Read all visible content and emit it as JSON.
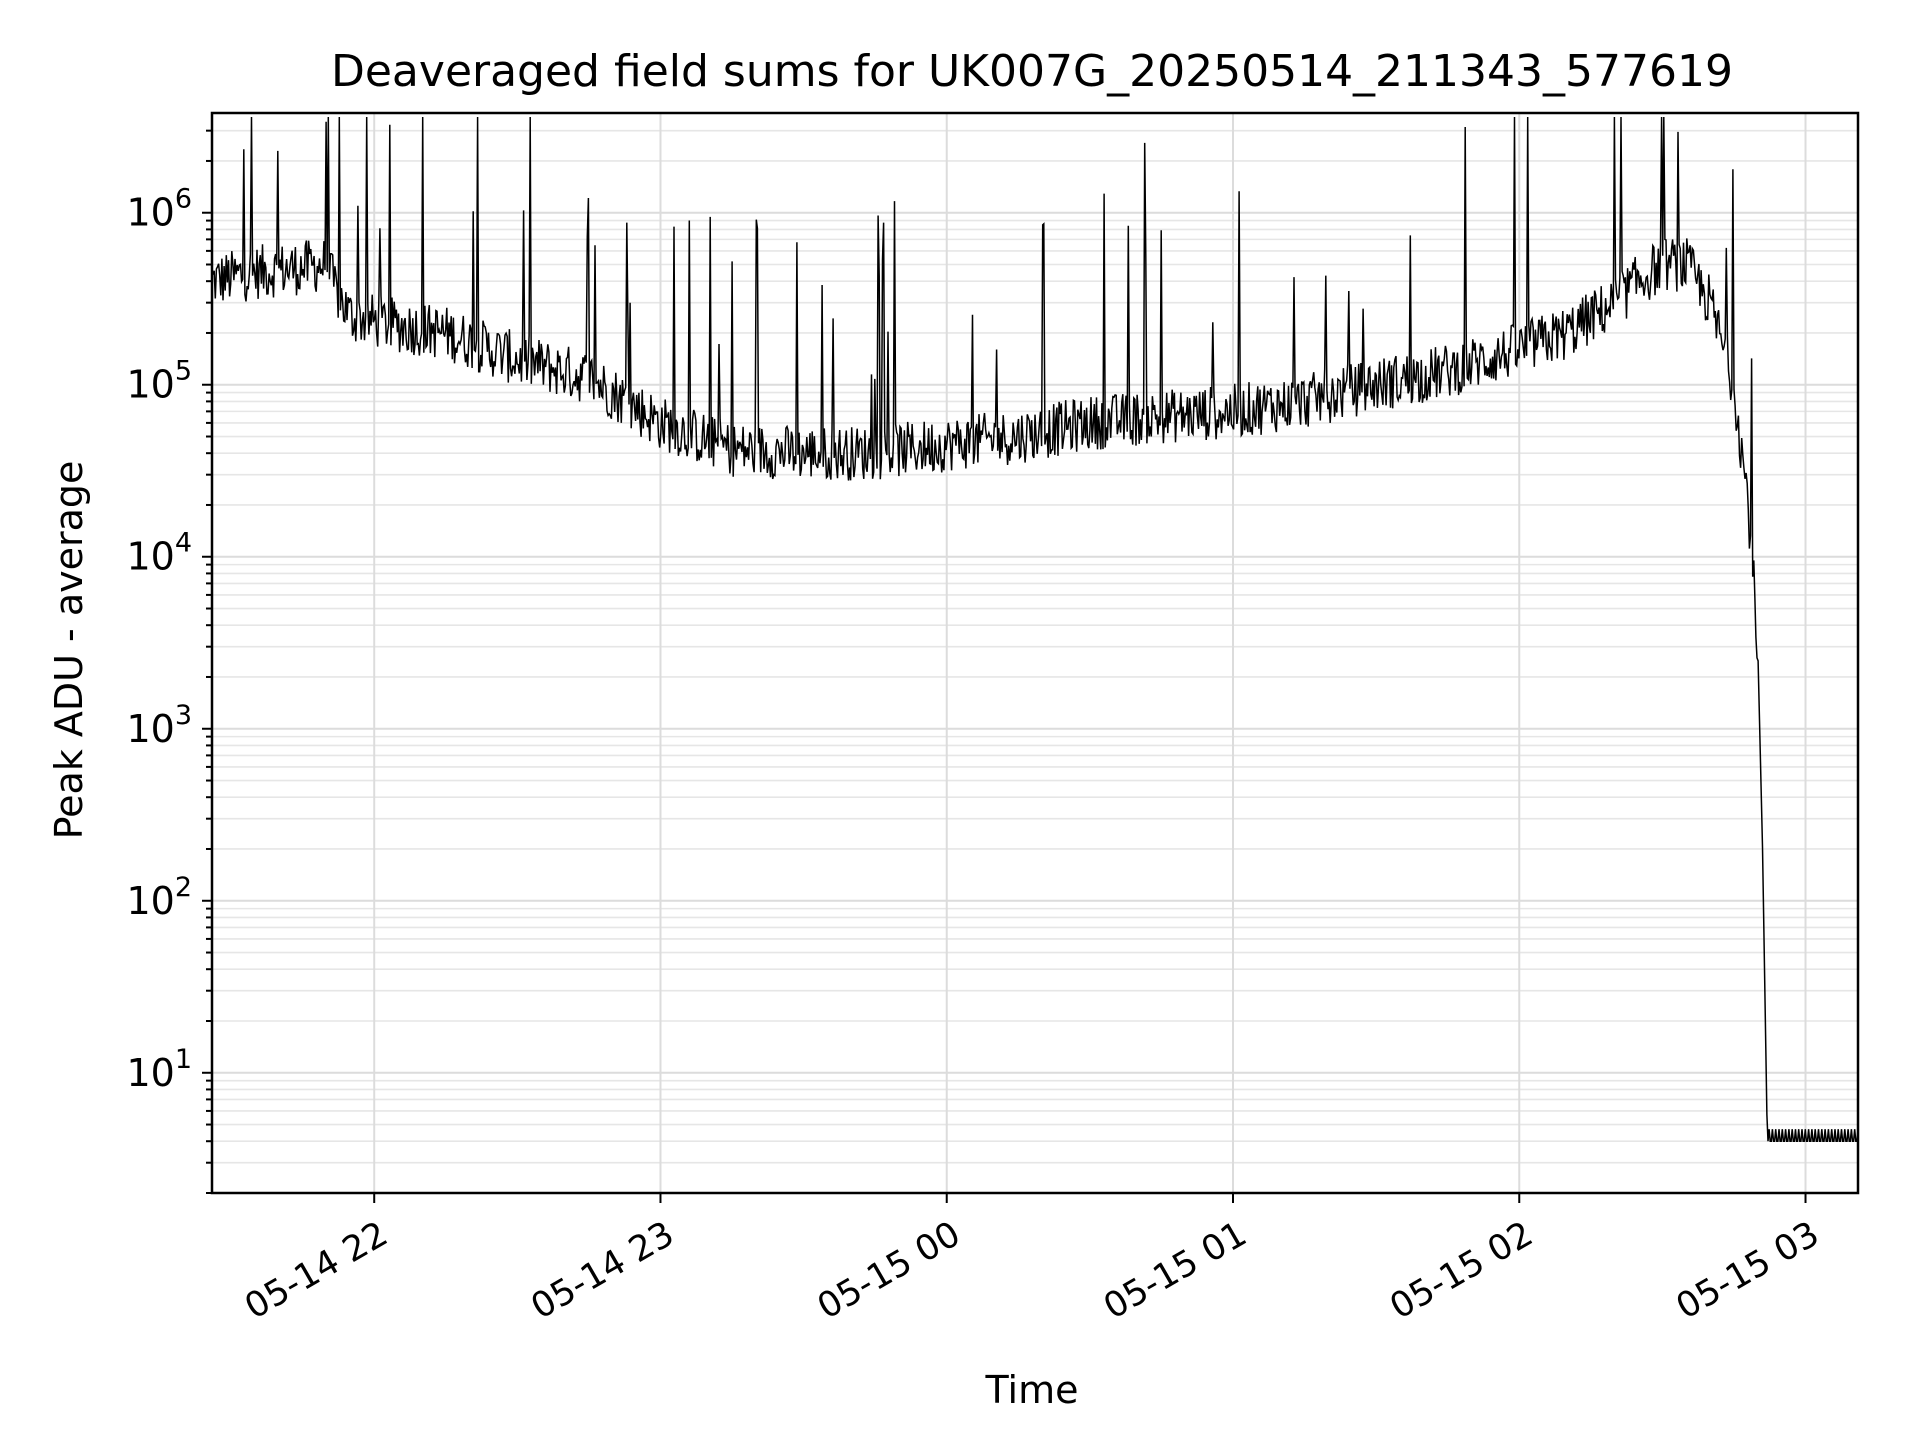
{
  "chart_data": {
    "type": "line",
    "title": "Deaveraged field sums for UK007G_20250514_211343_577619",
    "xlabel": "Time",
    "ylabel": "Peak ADU - average",
    "yscale": "log",
    "ylim": [
      2,
      3800000
    ],
    "xlim": [
      "2025-05-14 21:26",
      "2025-05-15 03:11"
    ],
    "x_ticks": [
      "05-14 22",
      "05-14 23",
      "05-15 00",
      "05-15 01",
      "05-15 02",
      "05-15 03"
    ],
    "x_tick_times": [
      "2025-05-14 22:00",
      "2025-05-14 23:00",
      "2025-05-15 00:00",
      "2025-05-15 01:00",
      "2025-05-15 02:00",
      "2025-05-15 03:00"
    ],
    "y_ticks": [
      {
        "base": "10",
        "exp": "1",
        "value": 10
      },
      {
        "base": "10",
        "exp": "2",
        "value": 100
      },
      {
        "base": "10",
        "exp": "3",
        "value": 1000
      },
      {
        "base": "10",
        "exp": "4",
        "value": 10000
      },
      {
        "base": "10",
        "exp": "5",
        "value": 100000
      },
      {
        "base": "10",
        "exp": "6",
        "value": 1000000
      }
    ],
    "grid": true,
    "series": [
      {
        "color": "#000000",
        "x": [
          "2025-05-14 21:26",
          "2025-05-14 21:35",
          "2025-05-14 21:45",
          "2025-05-14 21:50",
          "2025-05-14 21:52",
          "2025-05-14 21:55",
          "2025-05-14 22:05",
          "2025-05-14 22:15",
          "2025-05-14 22:30",
          "2025-05-14 22:45",
          "2025-05-14 23:00",
          "2025-05-14 23:15",
          "2025-05-14 23:30",
          "2025-05-14 23:45",
          "2025-05-15 00:00",
          "2025-05-15 00:15",
          "2025-05-15 00:30",
          "2025-05-15 00:45",
          "2025-05-15 01:00",
          "2025-05-15 01:15",
          "2025-05-15 01:30",
          "2025-05-15 01:45",
          "2025-05-15 02:00",
          "2025-05-15 02:10",
          "2025-05-15 02:20",
          "2025-05-15 02:25",
          "2025-05-15 02:30",
          "2025-05-15 02:35",
          "2025-05-15 02:40",
          "2025-05-15 02:45",
          "2025-05-15 02:48",
          "2025-05-15 02:50",
          "2025-05-15 02:51",
          "2025-05-15 02:52",
          "2025-05-15 03:11"
        ],
        "y": [
          400000,
          450000,
          480000,
          500000,
          350000,
          250000,
          220000,
          200000,
          140000,
          110000,
          60000,
          42000,
          40000,
          40000,
          45000,
          50000,
          60000,
          65000,
          70000,
          80000,
          100000,
          120000,
          160000,
          200000,
          300000,
          400000,
          500000,
          500000,
          300000,
          100000,
          20000,
          3000,
          200,
          4,
          4
        ]
      }
    ]
  }
}
